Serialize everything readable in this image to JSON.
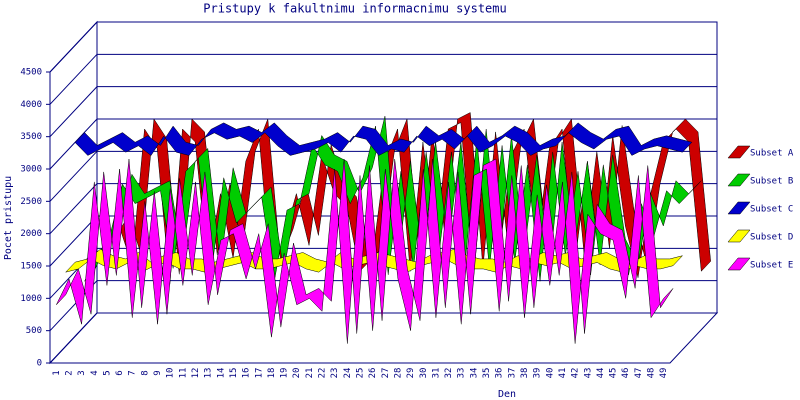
{
  "chart_data": {
    "type": "line3d",
    "title": "Pristupy k fakultnimu informacnimu systemu",
    "x_label": "Den",
    "y_label": "Pocet pristupu",
    "categories": [
      "1",
      "2",
      "3",
      "4",
      "5",
      "6",
      "7",
      "8",
      "9",
      "10",
      "11",
      "12",
      "13",
      "14",
      "15",
      "16",
      "17",
      "18",
      "19",
      "20",
      "21",
      "22",
      "23",
      "24",
      "25",
      "26",
      "27",
      "28",
      "29",
      "30",
      "31",
      "32",
      "33",
      "34",
      "35",
      "36",
      "37",
      "38",
      "39",
      "40",
      "41",
      "42",
      "43",
      "44",
      "45",
      "46",
      "47",
      "48",
      "49"
    ],
    "ylim": [
      0,
      4500
    ],
    "yticks": [
      0,
      500,
      1000,
      1500,
      2000,
      2500,
      3000,
      3500,
      4000,
      4500
    ],
    "grid": true,
    "series": [
      {
        "name": "Subset A",
        "color": "#cc0000",
        "values": [
          1000,
          1200,
          1500,
          900,
          3000,
          2700,
          600,
          3000,
          2800,
          900,
          2000,
          1000,
          2500,
          3000,
          800,
          1300,
          2000,
          1200,
          2600,
          2000,
          1800,
          800,
          1000,
          2500,
          3000,
          800,
          2800,
          1200,
          3000,
          3100,
          700,
          2800,
          1000,
          2600,
          3000,
          1200,
          2700,
          3000,
          900,
          2500,
          1000,
          2900,
          1500,
          700,
          2000,
          2800,
          3000,
          2800,
          800
        ]
      },
      {
        "name": "Subset B",
        "color": "#00cc00",
        "values": [
          800,
          1200,
          1500,
          2300,
          2000,
          2100,
          2200,
          1000,
          2500,
          2700,
          900,
          2400,
          1700,
          1900,
          2100,
          800,
          1900,
          2000,
          2900,
          2600,
          2500,
          2000,
          2400,
          3200,
          900,
          2500,
          1000,
          2800,
          1200,
          2800,
          900,
          3000,
          1000,
          2900,
          1100,
          2600,
          800,
          2800,
          1200,
          2500,
          900,
          2600,
          1300,
          900,
          2000,
          1500,
          2200,
          2000,
          2200
        ]
      },
      {
        "name": "Subset C",
        "color": "#0000cc",
        "values": [
          3100,
          2900,
          3000,
          3100,
          2950,
          3050,
          2900,
          3200,
          2950,
          2900,
          3150,
          3250,
          3150,
          3200,
          3100,
          3250,
          3050,
          2900,
          2950,
          3000,
          3100,
          2950,
          3200,
          3150,
          2900,
          3000,
          2950,
          3200,
          3050,
          3150,
          3000,
          3200,
          2950,
          3050,
          3200,
          3100,
          2900,
          3000,
          3050,
          3250,
          3100,
          3000,
          3150,
          3200,
          2900,
          3000,
          3050,
          3000,
          2950
        ]
      },
      {
        "name": "Subset D",
        "color": "#ffff00",
        "values": [
          1250,
          1300,
          1450,
          1350,
          1300,
          1400,
          1250,
          1350,
          1400,
          1300,
          1300,
          1250,
          1300,
          1350,
          1400,
          1300,
          1300,
          1350,
          1400,
          1300,
          1250,
          1400,
          1300,
          1350,
          1400,
          1350,
          1300,
          1250,
          1350,
          1400,
          1450,
          1350,
          1300,
          1300,
          1250,
          1350,
          1300,
          1400,
          1350,
          1400,
          1300,
          1350,
          1400,
          1300,
          1250,
          1350,
          1300,
          1300,
          1350
        ]
      },
      {
        "name": "Subset E",
        "color": "#ff00ff",
        "values": [
          900,
          1300,
          600,
          2800,
          1200,
          3000,
          700,
          2500,
          600,
          2700,
          1200,
          2800,
          900,
          1900,
          2000,
          1300,
          2000,
          400,
          1700,
          900,
          1000,
          800,
          3000,
          300,
          2900,
          500,
          3000,
          1300,
          500,
          3000,
          700,
          2800,
          600,
          2900,
          3000,
          800,
          2900,
          700,
          2600,
          1200,
          2800,
          300,
          2300,
          2000,
          1900,
          1000,
          2900,
          700,
          1000
        ]
      }
    ]
  }
}
